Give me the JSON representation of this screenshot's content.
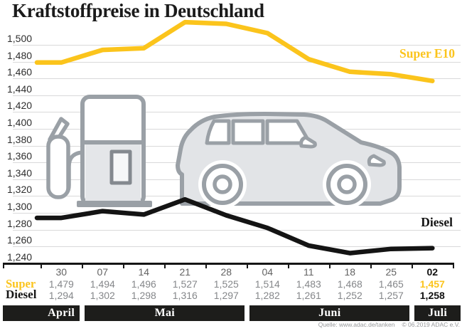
{
  "title": "Kraftstoffpreise in Deutschland",
  "colors": {
    "accent_yellow": "#FBC41C",
    "line_black": "#141414",
    "grid": "#D9D9DA",
    "icon_stroke": "#9AA0A6",
    "icon_fill": "#E2E4E7",
    "band_bg": "#1D1D1B",
    "value_gray": "#85878A",
    "date_gray": "#636363"
  },
  "chart_data": {
    "type": "line",
    "title": "Kraftstoffpreise in Deutschland",
    "x_dates": [
      "30",
      "07",
      "14",
      "21",
      "28",
      "04",
      "11",
      "18",
      "25",
      "02"
    ],
    "months": [
      {
        "label": "April",
        "cols": 1
      },
      {
        "label": "Mai",
        "cols": 4
      },
      {
        "label": "Juni",
        "cols": 4
      },
      {
        "label": "Juli",
        "cols": 1
      }
    ],
    "ytick_labels": [
      "1,500",
      "1,480",
      "1,460",
      "1,440",
      "1,420",
      "1,400",
      "1,380",
      "1,360",
      "1,340",
      "1,320",
      "1,300",
      "1,280",
      "1,260",
      "1,240"
    ],
    "ylim": [
      1240,
      1500
    ],
    "grid": true,
    "legend_position": "inline-right",
    "series": [
      {
        "name": "Super E10",
        "color": "#FBC41C",
        "values": [
          1479,
          1494,
          1496,
          1527,
          1525,
          1514,
          1483,
          1468,
          1465,
          1457
        ]
      },
      {
        "name": "Diesel",
        "color": "#141414",
        "values": [
          1294,
          1302,
          1298,
          1316,
          1297,
          1282,
          1261,
          1252,
          1257,
          1258
        ]
      }
    ]
  },
  "table": {
    "dates": [
      "30",
      "07",
      "14",
      "21",
      "28",
      "04",
      "11",
      "18",
      "25",
      "02"
    ],
    "rows": [
      {
        "label": "Super",
        "values": [
          "1,479",
          "1,494",
          "1,496",
          "1,527",
          "1,525",
          "1,514",
          "1,483",
          "1,468",
          "1,465",
          "1,457"
        ]
      },
      {
        "label": "Diesel",
        "values": [
          "1,294",
          "1,302",
          "1,298",
          "1,316",
          "1,297",
          "1,282",
          "1,261",
          "1,252",
          "1,257",
          "1,258"
        ]
      }
    ]
  },
  "line_labels": {
    "super": "Super E10",
    "diesel": "Diesel"
  },
  "footer": {
    "source": "Quelle: www.adac.de/tanken",
    "copyright": "© 06.2019  ADAC e.V."
  }
}
